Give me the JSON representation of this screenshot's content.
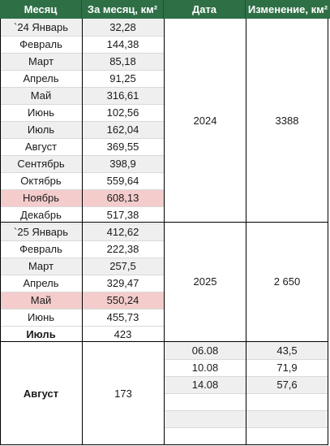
{
  "headers": {
    "month": "Месяц",
    "per_month": "За месяц, км²",
    "date": "Дата",
    "change": "Изменение, км²"
  },
  "rows_2024": [
    {
      "month": "`24 Январь",
      "value": "32,28",
      "bg": "g"
    },
    {
      "month": "Февраль",
      "value": "144,38",
      "bg": "w"
    },
    {
      "month": "Март",
      "value": "85,18",
      "bg": "g"
    },
    {
      "month": "Апрель",
      "value": "91,25",
      "bg": "w"
    },
    {
      "month": "Май",
      "value": "316,61",
      "bg": "g"
    },
    {
      "month": "Июнь",
      "value": "102,56",
      "bg": "w"
    },
    {
      "month": "Июль",
      "value": "162,04",
      "bg": "g"
    },
    {
      "month": "Август",
      "value": "369,55",
      "bg": "w"
    },
    {
      "month": "Сентябрь",
      "value": "398,9",
      "bg": "g"
    },
    {
      "month": "Октябрь",
      "value": "559,64",
      "bg": "w"
    },
    {
      "month": "Ноябрь",
      "value": "608,13",
      "bg": "p"
    },
    {
      "month": "Декабрь",
      "value": "517,38",
      "bg": "w"
    }
  ],
  "rows_2025": [
    {
      "month": "`25 Январь",
      "value": "412,62",
      "bg": "g"
    },
    {
      "month": "Февраль",
      "value": "222,38",
      "bg": "w"
    },
    {
      "month": "Март",
      "value": "257,5",
      "bg": "g"
    },
    {
      "month": "Апрель",
      "value": "329,47",
      "bg": "w"
    },
    {
      "month": "Май",
      "value": "550,24",
      "bg": "p"
    },
    {
      "month": "Июнь",
      "value": "455,73",
      "bg": "w"
    },
    {
      "month": "Июль",
      "value": "423",
      "bg": "w"
    }
  ],
  "year_2024": {
    "date": "2024",
    "change": "3388"
  },
  "year_2025": {
    "date": "2025",
    "change": "2 650"
  },
  "august": {
    "month": "Август",
    "value": "173",
    "entries": [
      {
        "date": "06.08",
        "change": "43,5"
      },
      {
        "date": "10.08",
        "change": "71,9"
      },
      {
        "date": "14.08",
        "change": "57,6"
      },
      {
        "date": "",
        "change": ""
      },
      {
        "date": "",
        "change": ""
      },
      {
        "date": "",
        "change": ""
      }
    ]
  },
  "colors": {
    "header_bg": "#2f6f46",
    "header_text": "#ffffff",
    "stripe": "#efefef",
    "highlight": "#f4cccc"
  }
}
